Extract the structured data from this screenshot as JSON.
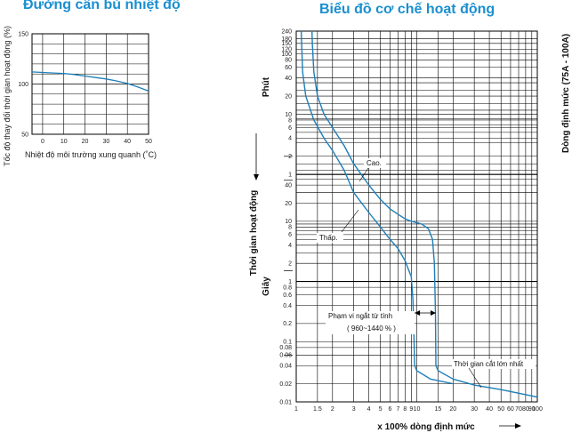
{
  "titles": {
    "left": "Đường cân bù nhiệt độ",
    "right": "Biểu đồ cơ chế hoạt động"
  },
  "colors": {
    "curve": "#1e7fb8",
    "title": "#1a8fd0",
    "grid": "#000000"
  },
  "chart_data": [
    {
      "type": "line",
      "title": "Đường cân bù nhiệt độ",
      "xlabel": "Nhiệt độ môi trường xung quanh (˚C)",
      "ylabel": "Tốc độ thay đổi thời gian hoạt động (%)",
      "xlim": [
        -5,
        50
      ],
      "ylim": [
        50,
        150
      ],
      "x_ticks": [
        "0",
        "10",
        "20",
        "30",
        "40",
        "50"
      ],
      "y_ticks": [
        "50",
        "100",
        "150"
      ],
      "grid": true,
      "series": [
        {
          "x": [
            -5,
            0,
            5,
            10,
            15,
            20,
            25,
            30,
            35,
            40,
            45,
            50
          ],
          "y": [
            112,
            111.5,
            111,
            110.5,
            109.5,
            108,
            106.5,
            105,
            103,
            100.5,
            97,
            93
          ]
        }
      ]
    },
    {
      "type": "line",
      "title": "Biểu đồ cơ chế hoạt động",
      "xlabel": "x 100% dòng định mức",
      "ylabel": "Thời gian hoạt động",
      "y_unit_upper": "Phút",
      "y_unit_lower": "Giây",
      "right_label": "Dòng định mức (75A - 100A)",
      "x_scale": "log",
      "y_scale": "log",
      "xlim": [
        1,
        100
      ],
      "x_ticks": [
        "1",
        "1.5",
        "2",
        "3",
        "4",
        "5",
        "6",
        "7",
        "8",
        "9",
        "10",
        "15",
        "20",
        "30",
        "40",
        "50",
        "60",
        "70",
        "80",
        "90",
        "100"
      ],
      "y_ticks_minutes": [
        "240",
        "180",
        "150",
        "120",
        "100",
        "80",
        "60",
        "40",
        "20",
        "10",
        "8",
        "6",
        "4",
        "2",
        "1"
      ],
      "y_ticks_seconds": [
        "40",
        "20",
        "10",
        "8",
        "6",
        "4",
        "2",
        "1",
        "0.8",
        "0.6",
        "0.4",
        "0.2",
        "0.1",
        "0.08",
        "0.06",
        "0.04",
        "0.02",
        "0.01"
      ],
      "grid": true,
      "annotations": {
        "high": "Cao.",
        "low": "Thấp.",
        "instant_range": "Phạm vi ngắt từ tính",
        "instant_range_value": "( 960~1440 % )",
        "min_break": "Thời gian cắt lớn nhất"
      },
      "series": [
        {
          "name": "Cao.",
          "x": [
            1.35,
            1.36,
            1.4,
            1.5,
            1.7,
            2.0,
            2.5,
            3.0,
            4.0,
            5.0,
            6.0,
            7.0,
            8.0,
            9.0,
            10.0,
            11.0,
            12.5,
            13.5,
            14.0,
            14.3,
            14.4,
            14.4,
            15.0,
            20.0,
            30.0,
            50.0,
            100.0
          ],
          "y_s": [
            14400,
            9000,
            3000,
            1200,
            600,
            360,
            180,
            90,
            40,
            23,
            16,
            13,
            11,
            10,
            9.5,
            9.0,
            7.5,
            5.0,
            2.0,
            0.3,
            0.04,
            0.04,
            0.033,
            0.024,
            0.019,
            0.016,
            0.012
          ]
        },
        {
          "name": "Thấp.",
          "x": [
            1.1,
            1.11,
            1.13,
            1.2,
            1.4,
            1.7,
            2.0,
            2.5,
            3.0,
            4.0,
            5.0,
            6.0,
            7.0,
            8.0,
            9.0,
            9.3,
            9.5,
            9.6,
            9.6,
            10.0,
            13.0,
            20.0
          ],
          "y_s": [
            14400,
            9000,
            3000,
            1200,
            480,
            240,
            150,
            70,
            30,
            14,
            8,
            5,
            3.5,
            2.2,
            1.2,
            0.5,
            0.1,
            0.04,
            0.04,
            0.033,
            0.024,
            0.02
          ]
        }
      ]
    }
  ]
}
